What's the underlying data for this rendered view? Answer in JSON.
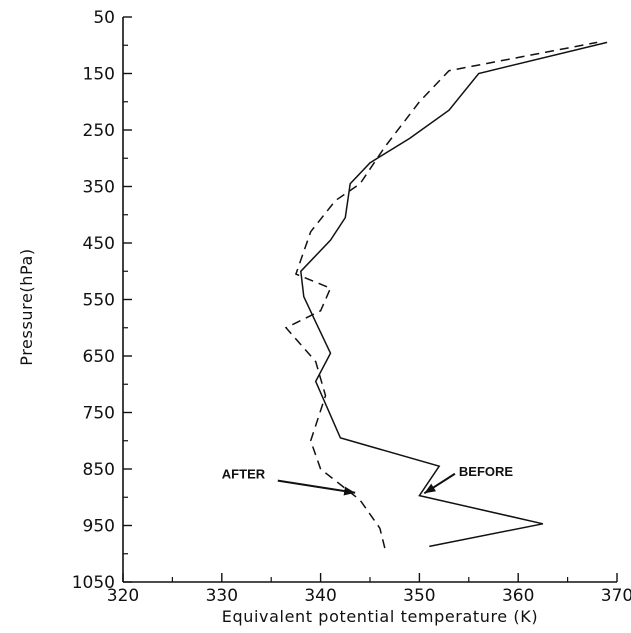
{
  "chart_data": {
    "type": "line",
    "title": "",
    "xlabel": "Equivalent potential temperature (K)",
    "ylabel": "Pressure(hPa)",
    "xlim": [
      320,
      370
    ],
    "ylim": [
      1050,
      50
    ],
    "x_ticks": [
      "320",
      "330",
      "340",
      "350",
      "360",
      "370"
    ],
    "y_ticks": [
      "50",
      "150",
      "250",
      "350",
      "450",
      "550",
      "650",
      "750",
      "850",
      "950",
      "1050"
    ],
    "grid": false,
    "legend": "none",
    "series": [
      {
        "name": "BEFORE",
        "style": "solid",
        "points": [
          [
            351,
            987
          ],
          [
            362.5,
            947
          ],
          [
            350,
            897
          ],
          [
            352,
            845
          ],
          [
            342,
            795
          ],
          [
            339.5,
            695
          ],
          [
            341,
            645
          ],
          [
            339.5,
            590
          ],
          [
            338.3,
            545
          ],
          [
            338,
            500
          ],
          [
            341,
            445
          ],
          [
            342.5,
            405
          ],
          [
            343,
            345
          ],
          [
            345,
            308
          ],
          [
            349,
            265
          ],
          [
            353,
            215
          ],
          [
            356,
            150
          ],
          [
            369,
            95
          ]
        ]
      },
      {
        "name": "AFTER",
        "style": "dashed",
        "points": [
          [
            346.5,
            990
          ],
          [
            346,
            955
          ],
          [
            344,
            905
          ],
          [
            340,
            850
          ],
          [
            339,
            800
          ],
          [
            340.5,
            720
          ],
          [
            339.5,
            660
          ],
          [
            337.5,
            620
          ],
          [
            336.5,
            600
          ],
          [
            340,
            570
          ],
          [
            341,
            530
          ],
          [
            337.5,
            505
          ],
          [
            339,
            430
          ],
          [
            341.5,
            375
          ],
          [
            344,
            345
          ],
          [
            346.5,
            280
          ],
          [
            350,
            200
          ],
          [
            353,
            145
          ],
          [
            368,
            95
          ]
        ]
      }
    ],
    "annotations": [
      {
        "text": "AFTER",
        "x_at": 330,
        "y_at": 867,
        "arrow_to": [
          343.5,
          892
        ]
      },
      {
        "text": "BEFORE",
        "x_at": 354,
        "y_at": 862,
        "arrow_to": [
          350.5,
          893
        ]
      }
    ]
  }
}
